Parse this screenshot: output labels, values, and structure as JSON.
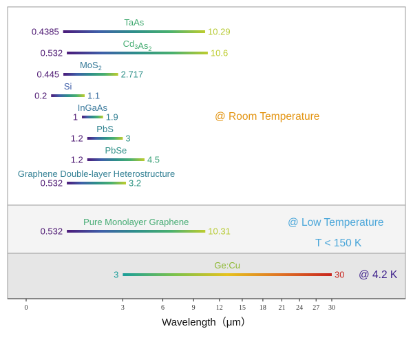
{
  "chart_data": {
    "type": "range-bar",
    "xlabel": "Wavelength（μm）",
    "x_ticks": [
      0,
      3,
      6,
      9,
      12,
      15,
      18,
      21,
      24,
      27,
      30
    ],
    "x_scale": "sqrt",
    "colors": {
      "gradient": [
        "#4b1a7a",
        "#3e5fa8",
        "#2e8f8a",
        "#49b06f",
        "#bdcc2e"
      ],
      "gecu_gradient": [
        "#1a9e9a",
        "#7cc24a",
        "#e6c21d",
        "#e07424",
        "#c8251e"
      ],
      "start_value_text": "#4a1470",
      "title_room": "#e39411",
      "title_low": "#4aa6d9",
      "title_4k": "#3b1d8a",
      "band_low": "#f4f4f4",
      "band_4k": "#e6e6e6"
    },
    "groups": [
      {
        "label": "@ Room Temperature",
        "items": [
          {
            "name": "TaAs",
            "start": 0.4385,
            "end": 10.29,
            "start_label": "0.4385",
            "end_label": "10.29",
            "name_parts": [
              {
                "t": "TaAs"
              }
            ]
          },
          {
            "name": "Cd3As2",
            "start": 0.532,
            "end": 10.6,
            "start_label": "0.532",
            "end_label": "10.6",
            "name_parts": [
              {
                "t": "Cd"
              },
              {
                "t": "3",
                "sub": true
              },
              {
                "t": "As"
              },
              {
                "t": "2",
                "sub": true
              }
            ]
          },
          {
            "name": "MoS2",
            "start": 0.445,
            "end": 2.717,
            "start_label": "0.445",
            "end_label": "2.717",
            "name_parts": [
              {
                "t": "MoS"
              },
              {
                "t": "2",
                "sub": true
              }
            ]
          },
          {
            "name": "Si",
            "start": 0.2,
            "end": 1.1,
            "start_label": "0.2",
            "end_label": "1.1",
            "name_parts": [
              {
                "t": "Si"
              }
            ]
          },
          {
            "name": "InGaAs",
            "start": 1,
            "end": 1.9,
            "start_label": "1",
            "end_label": "1.9",
            "name_parts": [
              {
                "t": "InGaAs"
              }
            ]
          },
          {
            "name": "PbS",
            "start": 1.2,
            "end": 3,
            "start_label": "1.2",
            "end_label": "3",
            "name_parts": [
              {
                "t": "PbS"
              }
            ]
          },
          {
            "name": "PbSe",
            "start": 1.2,
            "end": 4.5,
            "start_label": "1.2",
            "end_label": "4.5",
            "name_parts": [
              {
                "t": "PbSe"
              }
            ]
          },
          {
            "name": "Graphene Double-layer Heterostructure",
            "start": 0.532,
            "end": 3.2,
            "start_label": "0.532",
            "end_label": "3.2",
            "name_parts": [
              {
                "t": "Graphene Double-layer Heterostructure"
              }
            ]
          }
        ]
      },
      {
        "label": "@ Low Temperature",
        "label_line2": "T < 150 K",
        "items": [
          {
            "name": "Pure Monolayer Graphene",
            "start": 0.532,
            "end": 10.31,
            "start_label": "0.532",
            "end_label": "10.31",
            "name_parts": [
              {
                "t": "Pure Monolayer Graphene"
              }
            ]
          }
        ]
      },
      {
        "label": "@ 4.2 K",
        "items": [
          {
            "name": "Ge:Cu",
            "start": 3,
            "end": 30,
            "start_label": "3",
            "end_label": "30",
            "name_parts": [
              {
                "t": "Ge:Cu"
              }
            ]
          }
        ]
      }
    ]
  }
}
